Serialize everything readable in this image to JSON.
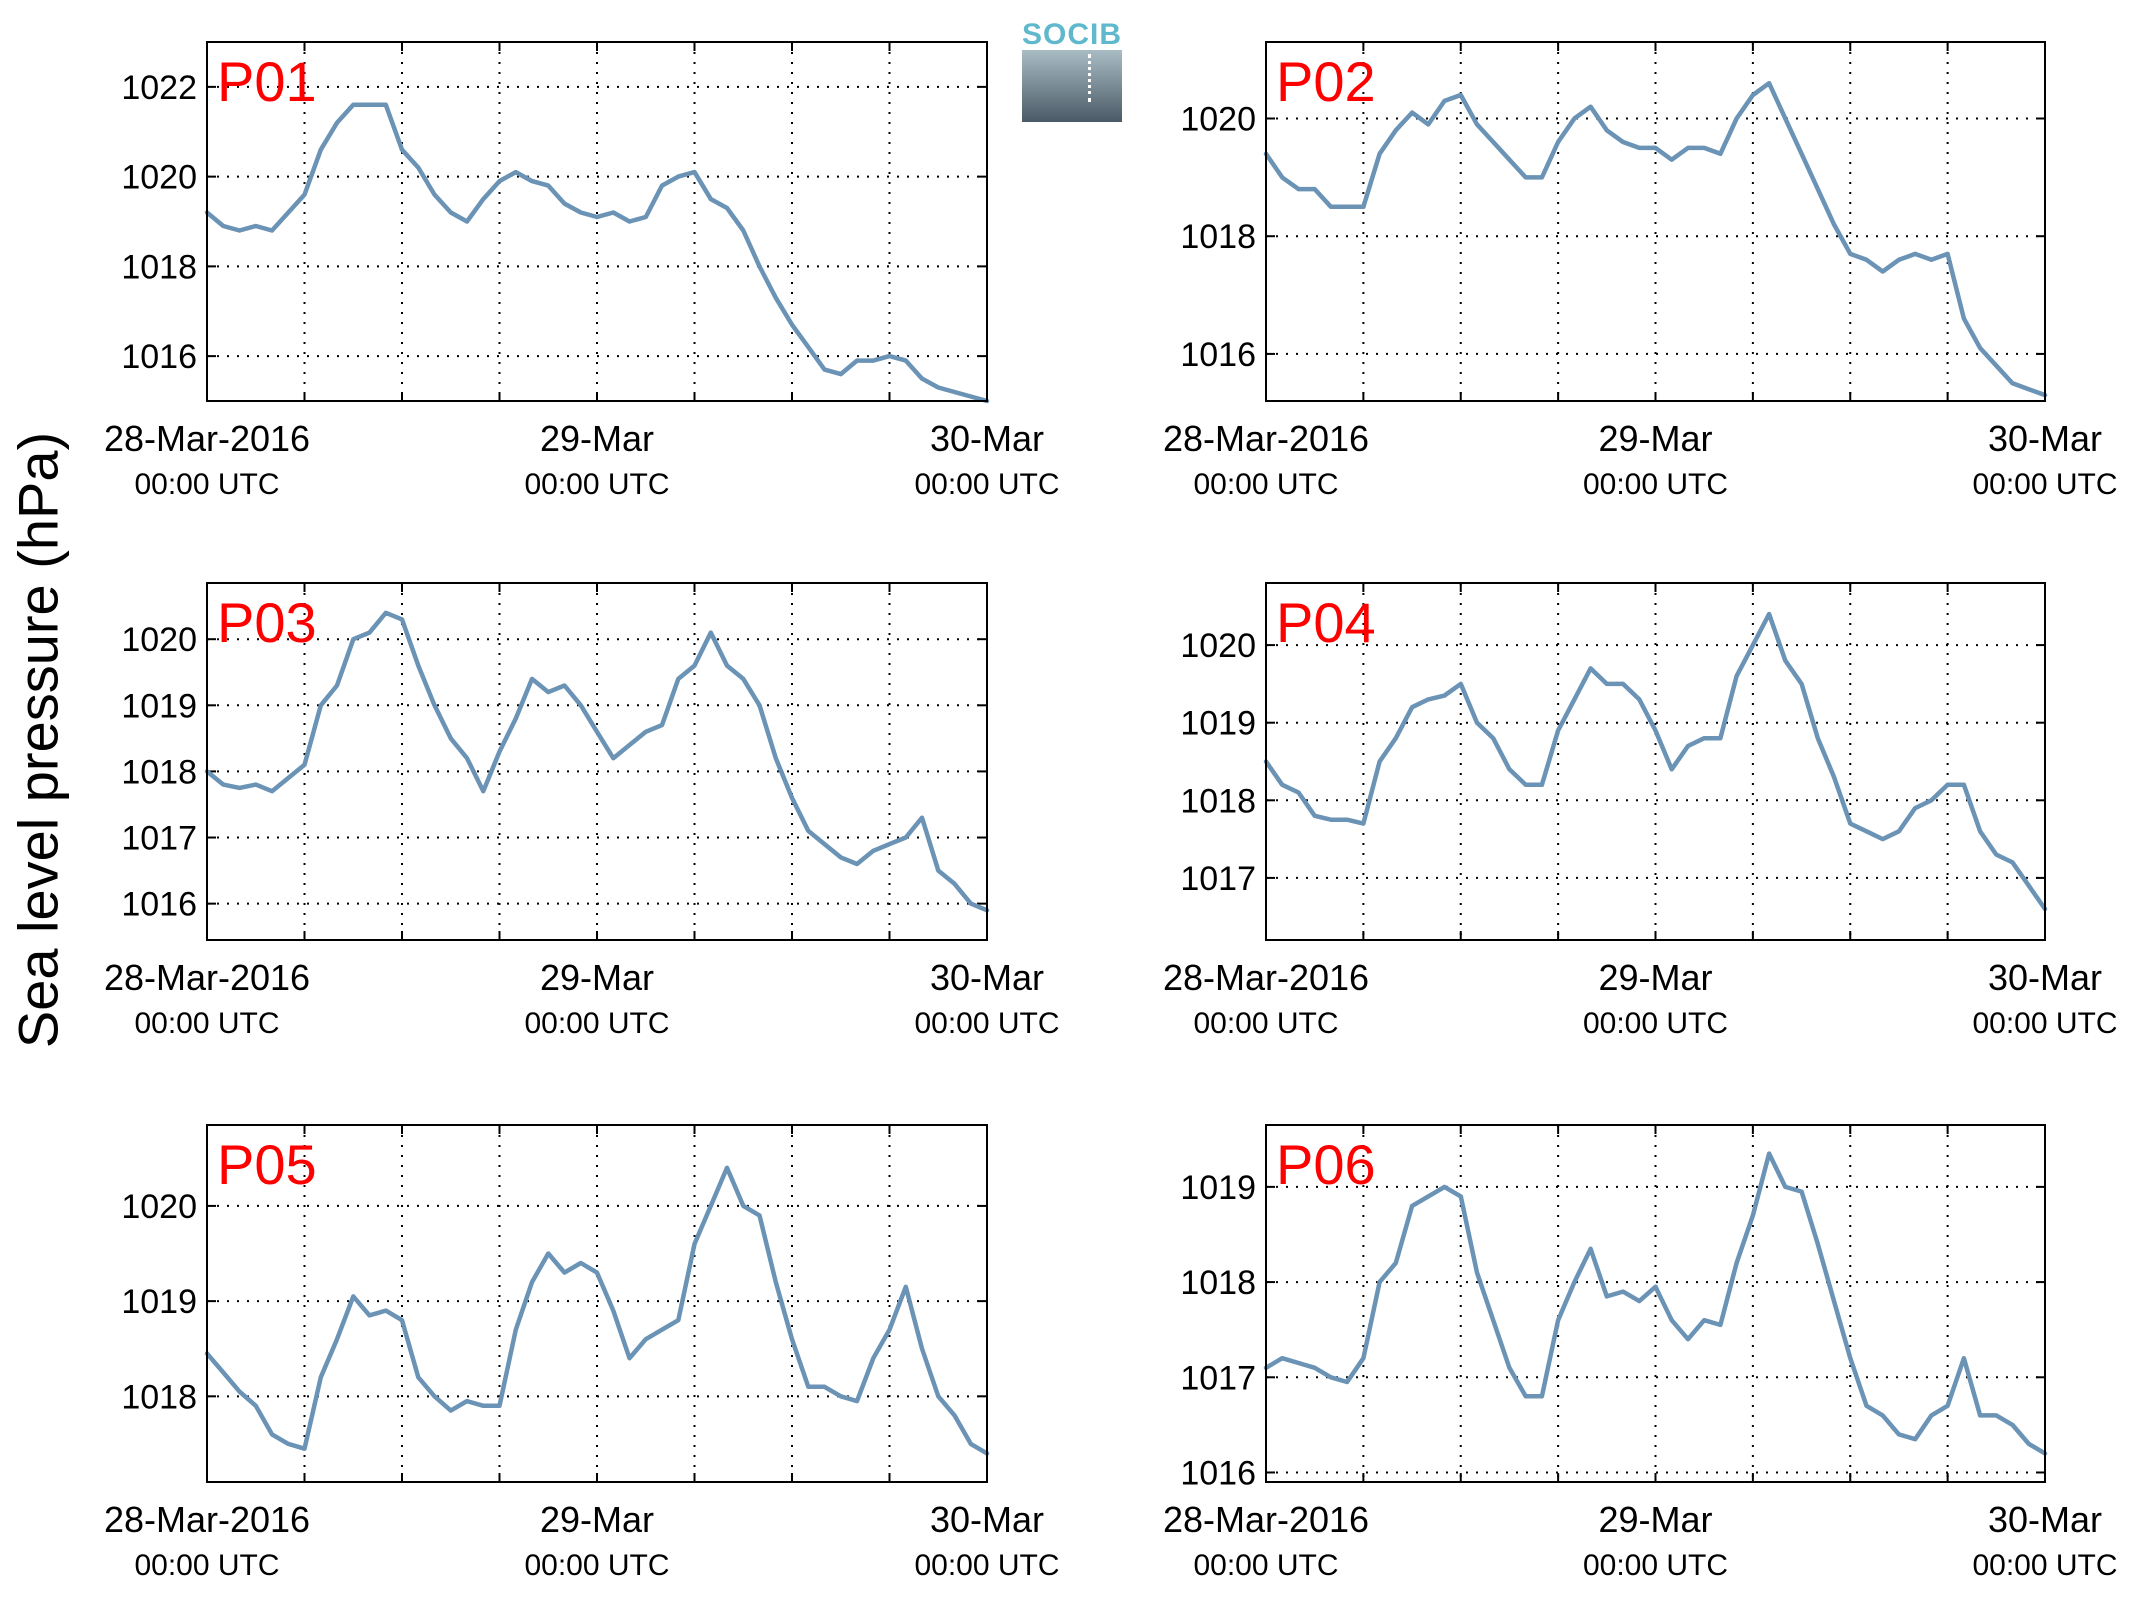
{
  "figure": {
    "ylabel": "Sea level pressure (hPa)",
    "logo_text": "SOCIB",
    "colors": {
      "line": "#6b93b5",
      "panel_label": "#ff0000",
      "grid": "#000000"
    }
  },
  "chart_data": [
    {
      "type": "line",
      "panel_label": "P01",
      "ylim": [
        1015,
        1023
      ],
      "yticks": [
        1016,
        1018,
        1020,
        1022
      ],
      "grid": true,
      "xticks": [
        {
          "x": 0,
          "line1": "28-Mar-2016",
          "line2": "00:00 UTC"
        },
        {
          "x": 24,
          "line1": "29-Mar",
          "line2": "00:00 UTC"
        },
        {
          "x": 48,
          "line1": "30-Mar",
          "line2": "00:00 UTC"
        }
      ],
      "series": [
        {
          "x": [
            0,
            1,
            2,
            3,
            4,
            5,
            6,
            7,
            8,
            9,
            10,
            11,
            12,
            13,
            14,
            15,
            16,
            17,
            18,
            19,
            20,
            21,
            22,
            23,
            24,
            25,
            26,
            27,
            28,
            29,
            30,
            31,
            32,
            33,
            34,
            35,
            36,
            37,
            38,
            39,
            40,
            41,
            42,
            43,
            44,
            45,
            46,
            47,
            48
          ],
          "y": [
            1019.2,
            1018.9,
            1018.8,
            1018.9,
            1018.8,
            1019.2,
            1019.6,
            1020.6,
            1021.2,
            1021.6,
            1021.6,
            1021.6,
            1020.6,
            1020.2,
            1019.6,
            1019.2,
            1019.0,
            1019.5,
            1019.9,
            1020.1,
            1019.9,
            1019.8,
            1019.4,
            1019.2,
            1019.1,
            1019.2,
            1019.0,
            1019.1,
            1019.8,
            1020.0,
            1020.1,
            1019.5,
            1019.3,
            1018.8,
            1018.0,
            1017.3,
            1016.7,
            1016.2,
            1015.7,
            1015.6,
            1015.9,
            1015.9,
            1016.0,
            1015.9,
            1015.5,
            1015.3,
            1015.2,
            1015.1,
            1015.0
          ]
        }
      ]
    },
    {
      "type": "line",
      "panel_label": "P02",
      "ylim": [
        1015.2,
        1021.3
      ],
      "yticks": [
        1016,
        1018,
        1020
      ],
      "grid": true,
      "xticks": [
        {
          "x": 0,
          "line1": "28-Mar-2016",
          "line2": "00:00 UTC"
        },
        {
          "x": 24,
          "line1": "29-Mar",
          "line2": "00:00 UTC"
        },
        {
          "x": 48,
          "line1": "30-Mar",
          "line2": "00:00 UTC"
        }
      ],
      "series": [
        {
          "x": [
            0,
            1,
            2,
            3,
            4,
            5,
            6,
            7,
            8,
            9,
            10,
            11,
            12,
            13,
            14,
            15,
            16,
            17,
            18,
            19,
            20,
            21,
            22,
            23,
            24,
            25,
            26,
            27,
            28,
            29,
            30,
            31,
            32,
            33,
            34,
            35,
            36,
            37,
            38,
            39,
            40,
            41,
            42,
            43,
            44,
            45,
            46,
            47,
            48
          ],
          "y": [
            1019.4,
            1019.0,
            1018.8,
            1018.8,
            1018.5,
            1018.5,
            1018.5,
            1019.4,
            1019.8,
            1020.1,
            1019.9,
            1020.3,
            1020.4,
            1019.9,
            1019.6,
            1019.3,
            1019.0,
            1019.0,
            1019.6,
            1020.0,
            1020.2,
            1019.8,
            1019.6,
            1019.5,
            1019.5,
            1019.3,
            1019.5,
            1019.5,
            1019.4,
            1020.0,
            1020.4,
            1020.6,
            1020.0,
            1019.4,
            1018.8,
            1018.2,
            1017.7,
            1017.6,
            1017.4,
            1017.6,
            1017.7,
            1017.6,
            1017.7,
            1016.6,
            1016.1,
            1015.8,
            1015.5,
            1015.4,
            1015.3
          ]
        }
      ]
    },
    {
      "type": "line",
      "panel_label": "P03",
      "ylim": [
        1015.45,
        1020.85
      ],
      "yticks": [
        1016,
        1017,
        1018,
        1019,
        1020
      ],
      "grid": true,
      "xticks": [
        {
          "x": 0,
          "line1": "28-Mar-2016",
          "line2": "00:00 UTC"
        },
        {
          "x": 24,
          "line1": "29-Mar",
          "line2": "00:00 UTC"
        },
        {
          "x": 48,
          "line1": "30-Mar",
          "line2": "00:00 UTC"
        }
      ],
      "series": [
        {
          "x": [
            0,
            1,
            2,
            3,
            4,
            5,
            6,
            7,
            8,
            9,
            10,
            11,
            12,
            13,
            14,
            15,
            16,
            17,
            18,
            19,
            20,
            21,
            22,
            23,
            24,
            25,
            26,
            27,
            28,
            29,
            30,
            31,
            32,
            33,
            34,
            35,
            36,
            37,
            38,
            39,
            40,
            41,
            42,
            43,
            44,
            45,
            46,
            47,
            48
          ],
          "y": [
            1018.0,
            1017.8,
            1017.75,
            1017.8,
            1017.7,
            1017.9,
            1018.1,
            1019.0,
            1019.3,
            1020.0,
            1020.1,
            1020.4,
            1020.3,
            1019.6,
            1019.0,
            1018.5,
            1018.2,
            1017.7,
            1018.3,
            1018.8,
            1019.4,
            1019.2,
            1019.3,
            1019.0,
            1018.6,
            1018.2,
            1018.4,
            1018.6,
            1018.7,
            1019.4,
            1019.6,
            1020.1,
            1019.6,
            1019.4,
            1019.0,
            1018.2,
            1017.6,
            1017.1,
            1016.9,
            1016.7,
            1016.6,
            1016.8,
            1016.9,
            1017.0,
            1017.3,
            1016.5,
            1016.3,
            1016.0,
            1015.9
          ]
        }
      ]
    },
    {
      "type": "line",
      "panel_label": "P04",
      "ylim": [
        1016.2,
        1020.8
      ],
      "yticks": [
        1017,
        1018,
        1019,
        1020
      ],
      "grid": true,
      "xticks": [
        {
          "x": 0,
          "line1": "28-Mar-2016",
          "line2": "00:00 UTC"
        },
        {
          "x": 24,
          "line1": "29-Mar",
          "line2": "00:00 UTC"
        },
        {
          "x": 48,
          "line1": "30-Mar",
          "line2": "00:00 UTC"
        }
      ],
      "series": [
        {
          "x": [
            0,
            1,
            2,
            3,
            4,
            5,
            6,
            7,
            8,
            9,
            10,
            11,
            12,
            13,
            14,
            15,
            16,
            17,
            18,
            19,
            20,
            21,
            22,
            23,
            24,
            25,
            26,
            27,
            28,
            29,
            30,
            31,
            32,
            33,
            34,
            35,
            36,
            37,
            38,
            39,
            40,
            41,
            42,
            43,
            44,
            45,
            46,
            47,
            48
          ],
          "y": [
            1018.5,
            1018.2,
            1018.1,
            1017.8,
            1017.75,
            1017.75,
            1017.7,
            1018.5,
            1018.8,
            1019.2,
            1019.3,
            1019.35,
            1019.5,
            1019.0,
            1018.8,
            1018.4,
            1018.2,
            1018.2,
            1018.9,
            1019.3,
            1019.7,
            1019.5,
            1019.5,
            1019.3,
            1018.9,
            1018.4,
            1018.7,
            1018.8,
            1018.8,
            1019.6,
            1020.0,
            1020.4,
            1019.8,
            1019.5,
            1018.8,
            1018.3,
            1017.7,
            1017.6,
            1017.5,
            1017.6,
            1017.9,
            1018.0,
            1018.2,
            1018.2,
            1017.6,
            1017.3,
            1017.2,
            1016.9,
            1016.6
          ]
        }
      ]
    },
    {
      "type": "line",
      "panel_label": "P05",
      "ylim": [
        1017.1,
        1020.85
      ],
      "yticks": [
        1018,
        1019,
        1020
      ],
      "grid": true,
      "xticks": [
        {
          "x": 0,
          "line1": "28-Mar-2016",
          "line2": "00:00 UTC"
        },
        {
          "x": 24,
          "line1": "29-Mar",
          "line2": "00:00 UTC"
        },
        {
          "x": 48,
          "line1": "30-Mar",
          "line2": "00:00 UTC"
        }
      ],
      "series": [
        {
          "x": [
            0,
            1,
            2,
            3,
            4,
            5,
            6,
            7,
            8,
            9,
            10,
            11,
            12,
            13,
            14,
            15,
            16,
            17,
            18,
            19,
            20,
            21,
            22,
            23,
            24,
            25,
            26,
            27,
            28,
            29,
            30,
            31,
            32,
            33,
            34,
            35,
            36,
            37,
            38,
            39,
            40,
            41,
            42,
            43,
            44,
            45,
            46,
            47,
            48
          ],
          "y": [
            1018.45,
            1018.25,
            1018.05,
            1017.9,
            1017.6,
            1017.5,
            1017.45,
            1018.2,
            1018.6,
            1019.05,
            1018.85,
            1018.9,
            1018.8,
            1018.2,
            1018.0,
            1017.85,
            1017.95,
            1017.9,
            1017.9,
            1018.7,
            1019.2,
            1019.5,
            1019.3,
            1019.4,
            1019.3,
            1018.9,
            1018.4,
            1018.6,
            1018.7,
            1018.8,
            1019.6,
            1020.0,
            1020.4,
            1020.0,
            1019.9,
            1019.2,
            1018.6,
            1018.1,
            1018.1,
            1018.0,
            1017.95,
            1018.4,
            1018.7,
            1019.15,
            1018.5,
            1018.0,
            1017.8,
            1017.5,
            1017.4
          ]
        }
      ]
    },
    {
      "type": "line",
      "panel_label": "P06",
      "ylim": [
        1015.9,
        1019.65
      ],
      "yticks": [
        1016,
        1017,
        1018,
        1019
      ],
      "grid": true,
      "xticks": [
        {
          "x": 0,
          "line1": "28-Mar-2016",
          "line2": "00:00 UTC"
        },
        {
          "x": 24,
          "line1": "29-Mar",
          "line2": "00:00 UTC"
        },
        {
          "x": 48,
          "line1": "30-Mar",
          "line2": "00:00 UTC"
        }
      ],
      "series": [
        {
          "x": [
            0,
            1,
            2,
            3,
            4,
            5,
            6,
            7,
            8,
            9,
            10,
            11,
            12,
            13,
            14,
            15,
            16,
            17,
            18,
            19,
            20,
            21,
            22,
            23,
            24,
            25,
            26,
            27,
            28,
            29,
            30,
            31,
            32,
            33,
            34,
            35,
            36,
            37,
            38,
            39,
            40,
            41,
            42,
            43,
            44,
            45,
            46,
            47,
            48
          ],
          "y": [
            1017.1,
            1017.2,
            1017.15,
            1017.1,
            1017.0,
            1016.95,
            1017.2,
            1018.0,
            1018.2,
            1018.8,
            1018.9,
            1019.0,
            1018.9,
            1018.1,
            1017.6,
            1017.1,
            1016.8,
            1016.8,
            1017.6,
            1018.0,
            1018.35,
            1017.85,
            1017.9,
            1017.8,
            1017.95,
            1017.6,
            1017.4,
            1017.6,
            1017.55,
            1018.2,
            1018.7,
            1019.35,
            1019.0,
            1018.95,
            1018.4,
            1017.8,
            1017.2,
            1016.7,
            1016.6,
            1016.4,
            1016.35,
            1016.6,
            1016.7,
            1017.2,
            1016.6,
            1016.6,
            1016.5,
            1016.3,
            1016.2
          ]
        }
      ]
    }
  ]
}
